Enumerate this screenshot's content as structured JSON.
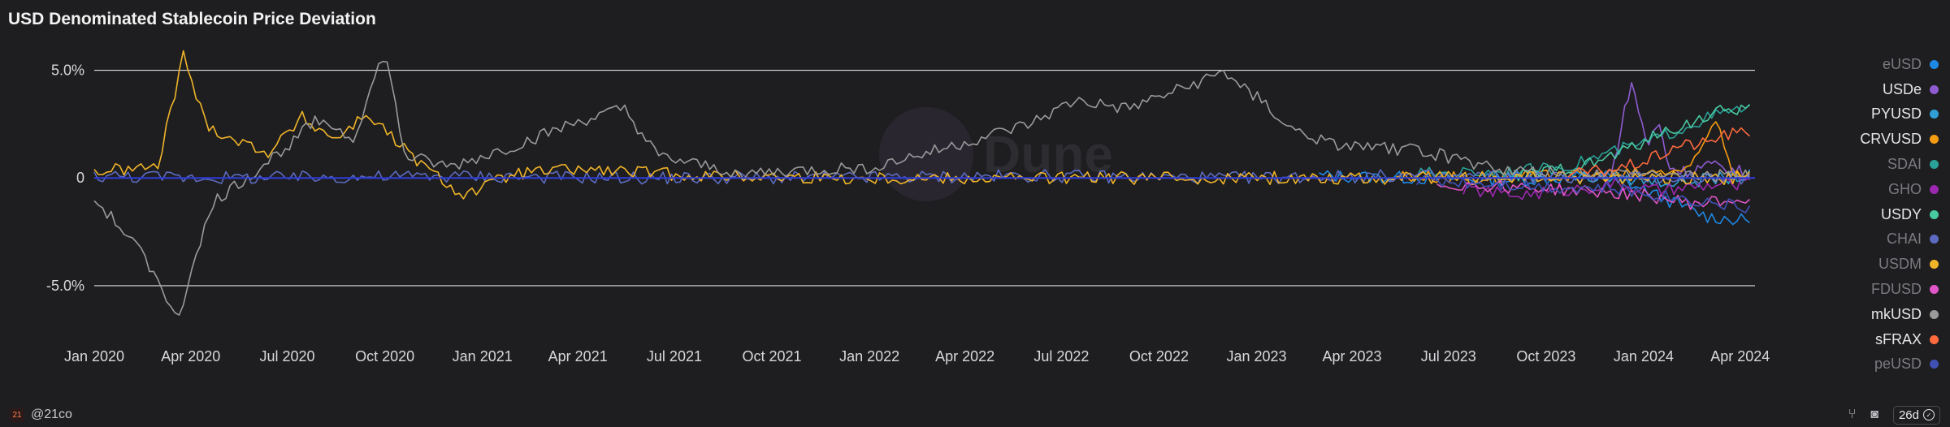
{
  "title": "USD Denominated Stablecoin Price Deviation",
  "footer": {
    "brand_logo_text": "21",
    "handle": "@21co",
    "refresh_label": "26d"
  },
  "watermark": "Dune",
  "colors": {
    "background": "#1e1e20",
    "gridline": "#e0e0e0"
  },
  "chart_data": {
    "type": "line",
    "y_ticks": [
      {
        "value": 5,
        "label": "5.0%"
      },
      {
        "value": 0,
        "label": "0"
      },
      {
        "value": -5,
        "label": "-5.0%"
      }
    ],
    "ylim": [
      -7.0,
      6.0
    ],
    "x_ticks": [
      "Jan 2020",
      "Apr 2020",
      "Jul 2020",
      "Oct 2020",
      "Jan 2021",
      "Apr 2021",
      "Jul 2021",
      "Oct 2021",
      "Jan 2022",
      "Apr 2022",
      "Jul 2022",
      "Oct 2022",
      "Jan 2023",
      "Apr 2023",
      "Jul 2023",
      "Oct 2023",
      "Jan 2024",
      "Apr 2024"
    ],
    "xlim": [
      "2020-01-01",
      "2024-04-15"
    ],
    "grid": "horizontal",
    "legend_position": "right",
    "series": [
      {
        "name": "eUSD",
        "color": "#1e88e5",
        "dim": true,
        "points": [
          [
            "2023-03-01",
            0.1
          ],
          [
            "2023-06-01",
            0.0
          ],
          [
            "2023-09-01",
            -0.1
          ],
          [
            "2023-12-01",
            0.1
          ],
          [
            "2024-02-01",
            -1.2
          ],
          [
            "2024-03-01",
            -1.8
          ],
          [
            "2024-04-10",
            -2.0
          ]
        ]
      },
      {
        "name": "USDe",
        "color": "#8e5bd1",
        "dim": false,
        "points": [
          [
            "2023-12-01",
            0.0
          ],
          [
            "2023-12-20",
            4.5
          ],
          [
            "2024-01-05",
            1.5
          ],
          [
            "2024-01-15",
            2.6
          ],
          [
            "2024-01-25",
            0.5
          ],
          [
            "2024-02-10",
            0.3
          ],
          [
            "2024-03-01",
            0.6
          ],
          [
            "2024-04-10",
            0.2
          ]
        ]
      },
      {
        "name": "PYUSD",
        "color": "#2f9fd6",
        "dim": false,
        "points": [
          [
            "2023-08-10",
            0.2
          ],
          [
            "2023-10-01",
            0.1
          ],
          [
            "2023-12-01",
            0.0
          ],
          [
            "2024-02-01",
            -0.2
          ],
          [
            "2024-04-10",
            0.1
          ]
        ]
      },
      {
        "name": "CRVUSD",
        "color": "#f39c12",
        "dim": false,
        "points": [
          [
            "2023-05-15",
            0.1
          ],
          [
            "2023-08-01",
            0.0
          ],
          [
            "2023-11-01",
            0.1
          ],
          [
            "2024-01-01",
            0.2
          ],
          [
            "2024-02-15",
            0.4
          ],
          [
            "2024-03-10",
            2.8
          ],
          [
            "2024-03-25",
            0.3
          ],
          [
            "2024-04-10",
            0.2
          ]
        ]
      },
      {
        "name": "SDAI",
        "color": "#2aa198",
        "dim": true,
        "points": [
          [
            "2023-06-01",
            0.2
          ],
          [
            "2023-08-15",
            0.3
          ],
          [
            "2023-10-01",
            0.4
          ],
          [
            "2023-11-01",
            0.7
          ],
          [
            "2023-12-01",
            1.2
          ],
          [
            "2024-01-01",
            1.6
          ],
          [
            "2024-02-01",
            2.2
          ],
          [
            "2024-03-01",
            2.8
          ],
          [
            "2024-04-10",
            3.3
          ]
        ]
      },
      {
        "name": "GHO",
        "color": "#9c27b0",
        "dim": true,
        "points": [
          [
            "2023-07-15",
            -0.5
          ],
          [
            "2023-09-01",
            -0.8
          ],
          [
            "2023-10-15",
            -0.6
          ],
          [
            "2023-12-01",
            -0.3
          ],
          [
            "2024-01-15",
            -0.6
          ],
          [
            "2024-03-01",
            -0.4
          ],
          [
            "2024-04-10",
            -0.2
          ]
        ]
      },
      {
        "name": "USDY",
        "color": "#48c9a0",
        "dim": false,
        "points": [
          [
            "2023-09-01",
            0.1
          ],
          [
            "2023-10-01",
            0.3
          ],
          [
            "2023-11-15",
            0.7
          ],
          [
            "2023-12-15",
            1.3
          ],
          [
            "2024-01-15",
            2.0
          ],
          [
            "2024-02-15",
            2.6
          ],
          [
            "2024-03-15",
            3.1
          ],
          [
            "2024-04-10",
            3.3
          ]
        ]
      },
      {
        "name": "CHAI",
        "color": "#5c6bc0",
        "dim": true,
        "points": [
          [
            "2020-01-01",
            0.1
          ],
          [
            "2020-06-01",
            0.0
          ],
          [
            "2020-12-01",
            0.1
          ],
          [
            "2021-06-01",
            0.0
          ],
          [
            "2021-12-01",
            0.0
          ],
          [
            "2022-06-01",
            0.1
          ],
          [
            "2022-12-01",
            0.0
          ],
          [
            "2023-06-01",
            0.1
          ],
          [
            "2023-12-01",
            0.0
          ],
          [
            "2024-04-10",
            0.0
          ]
        ]
      },
      {
        "name": "USDM",
        "color": "#f0b429",
        "dim": true,
        "points": [
          [
            "2020-01-01",
            0.3
          ],
          [
            "2020-03-01",
            0.5
          ],
          [
            "2020-03-25",
            5.7
          ],
          [
            "2020-04-15",
            2.5
          ],
          [
            "2020-05-15",
            1.7
          ],
          [
            "2020-06-15",
            1.2
          ],
          [
            "2020-07-15",
            2.8
          ],
          [
            "2020-08-15",
            1.8
          ],
          [
            "2020-09-15",
            3.0
          ],
          [
            "2020-10-15",
            1.5
          ],
          [
            "2020-11-15",
            0.2
          ],
          [
            "2020-12-15",
            -0.8
          ],
          [
            "2021-02-01",
            0.2
          ],
          [
            "2021-04-01",
            0.4
          ],
          [
            "2021-08-01",
            0.1
          ],
          [
            "2021-12-01",
            0.0
          ],
          [
            "2022-06-01",
            0.0
          ],
          [
            "2023-06-01",
            0.0
          ],
          [
            "2024-04-10",
            0.0
          ]
        ]
      },
      {
        "name": "FDUSD",
        "color": "#e055c8",
        "dim": true,
        "points": [
          [
            "2023-06-20",
            -0.3
          ],
          [
            "2023-09-01",
            -0.4
          ],
          [
            "2023-11-01",
            -0.6
          ],
          [
            "2024-01-01",
            -0.8
          ],
          [
            "2024-02-15",
            -1.2
          ],
          [
            "2024-04-10",
            -1.0
          ]
        ]
      },
      {
        "name": "mkUSD",
        "color": "#9a9a9a",
        "dim": false,
        "points": [
          [
            "2020-01-01",
            -1.0
          ],
          [
            "2020-01-20",
            -2.0
          ],
          [
            "2020-02-15",
            -3.5
          ],
          [
            "2020-03-05",
            -5.0
          ],
          [
            "2020-03-20",
            -6.8
          ],
          [
            "2020-04-05",
            -3.5
          ],
          [
            "2020-04-25",
            -1.0
          ],
          [
            "2020-06-01",
            0.3
          ],
          [
            "2020-07-01",
            1.5
          ],
          [
            "2020-08-01",
            2.8
          ],
          [
            "2020-09-01",
            1.8
          ],
          [
            "2020-10-01",
            5.9
          ],
          [
            "2020-10-20",
            1.0
          ],
          [
            "2020-12-01",
            0.5
          ],
          [
            "2021-02-01",
            1.5
          ],
          [
            "2021-04-01",
            2.6
          ],
          [
            "2021-05-15",
            3.2
          ],
          [
            "2021-06-15",
            1.0
          ],
          [
            "2021-09-01",
            0.2
          ],
          [
            "2022-01-01",
            0.5
          ],
          [
            "2022-03-01",
            1.2
          ],
          [
            "2022-06-01",
            2.5
          ],
          [
            "2022-07-15",
            3.6
          ],
          [
            "2022-09-01",
            3.2
          ],
          [
            "2022-11-01",
            4.3
          ],
          [
            "2022-12-01",
            4.9
          ],
          [
            "2023-01-01",
            3.8
          ],
          [
            "2023-02-01",
            2.3
          ],
          [
            "2023-03-15",
            1.5
          ],
          [
            "2023-06-01",
            1.3
          ],
          [
            "2023-09-01",
            0.3
          ],
          [
            "2023-12-01",
            0.2
          ],
          [
            "2024-04-10",
            0.1
          ]
        ]
      },
      {
        "name": "sFRAX",
        "color": "#ff6a3d",
        "dim": false,
        "points": [
          [
            "2023-10-20",
            0.1
          ],
          [
            "2023-11-15",
            0.3
          ],
          [
            "2023-12-15",
            0.5
          ],
          [
            "2024-01-15",
            1.0
          ],
          [
            "2024-02-01",
            1.5
          ],
          [
            "2024-03-01",
            1.6
          ],
          [
            "2024-03-15",
            2.0
          ],
          [
            "2024-04-10",
            2.1
          ]
        ]
      },
      {
        "name": "peUSD",
        "color": "#3f51b5",
        "dim": true,
        "points": [
          [
            "2023-06-01",
            -0.1
          ],
          [
            "2023-08-01",
            -0.2
          ],
          [
            "2023-10-01",
            -0.4
          ],
          [
            "2023-12-01",
            -0.5
          ],
          [
            "2024-02-01",
            -0.9
          ],
          [
            "2024-04-10",
            -1.4
          ]
        ]
      }
    ]
  }
}
